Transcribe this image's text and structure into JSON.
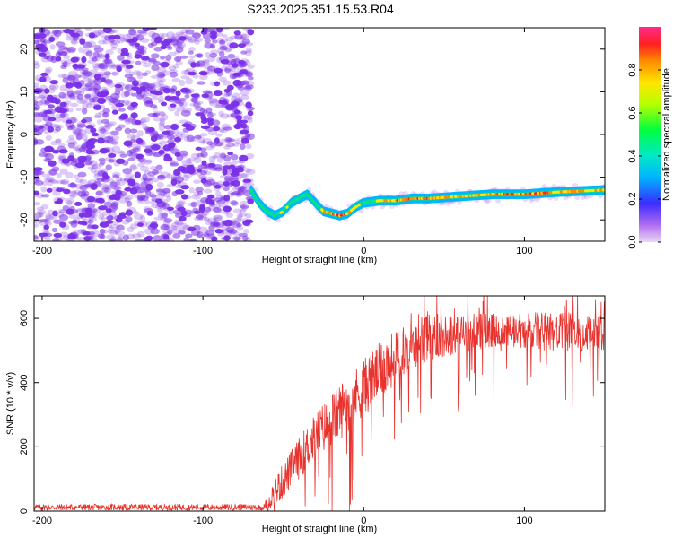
{
  "figure": {
    "title": "S233.2025.351.15.53.R04"
  },
  "chart_data": [
    {
      "type": "heatmap",
      "title": "S233.2025.351.15.53.R04",
      "xlabel": "Height of straight line (km)",
      "ylabel": "Frequency (Hz)",
      "xlim": [
        -205,
        150
      ],
      "ylim": [
        -25,
        25
      ],
      "x_ticks": [
        -200,
        -100,
        0,
        100
      ],
      "x_tick_labels": [
        "-200",
        "-100",
        "0",
        "100"
      ],
      "y_ticks": [
        -20,
        -10,
        0,
        10,
        20
      ],
      "y_tick_labels": [
        "-20",
        "-10",
        "0",
        "10",
        "20"
      ],
      "noise_region_x": [
        -205,
        -70
      ],
      "signal_ridge": {
        "x": [
          -70,
          -65,
          -60,
          -55,
          -50,
          -45,
          -40,
          -35,
          -30,
          -25,
          -20,
          -15,
          -10,
          -5,
          0,
          10,
          20,
          30,
          40,
          60,
          80,
          100,
          120,
          150
        ],
        "freq": [
          -13,
          -16,
          -18,
          -19,
          -18,
          -16,
          -15,
          -14,
          -16,
          -18,
          -18.5,
          -19,
          -18.5,
          -17,
          -16,
          -15.5,
          -15.5,
          -15,
          -15,
          -14.5,
          -14,
          -14,
          -13.5,
          -13
        ],
        "amplitude": [
          0.3,
          0.4,
          0.6,
          0.7,
          0.8,
          0.7,
          0.6,
          0.5,
          0.6,
          0.8,
          0.9,
          0.95,
          0.9,
          0.8,
          0.7,
          0.8,
          0.9,
          0.95,
          0.9,
          0.85,
          0.9,
          0.95,
          0.9,
          0.85
        ]
      },
      "colorbar": {
        "label": "Normalized spectral amplitude",
        "range": [
          0,
          1
        ],
        "ticks": [
          0.0,
          0.2,
          0.4,
          0.6,
          0.8
        ],
        "tick_labels": [
          "0.0",
          "0.2",
          "0.4",
          "0.6",
          "0.8"
        ]
      }
    },
    {
      "type": "line",
      "xlabel": "Height of straight line (km)",
      "ylabel": "SNR (10 * v/v)",
      "xlim": [
        -205,
        150
      ],
      "ylim": [
        0,
        670
      ],
      "x_ticks": [
        -200,
        -100,
        0,
        100
      ],
      "x_tick_labels": [
        "-200",
        "-100",
        "0",
        "100"
      ],
      "y_ticks": [
        0,
        200,
        400,
        600
      ],
      "y_tick_labels": [
        "0",
        "200",
        "400",
        "600"
      ],
      "series": [
        {
          "name": "SNR",
          "color": "#e8322d",
          "envelope_x": [
            -205,
            -100,
            -62,
            -55,
            -45,
            -35,
            -25,
            -15,
            -5,
            5,
            15,
            25,
            35,
            50,
            70,
            90,
            110,
            130,
            150
          ],
          "envelope_mean": [
            12,
            12,
            12,
            60,
            130,
            200,
            260,
            310,
            360,
            410,
            460,
            500,
            530,
            550,
            560,
            555,
            560,
            555,
            560
          ],
          "envelope_spread": [
            10,
            10,
            10,
            50,
            60,
            70,
            80,
            90,
            90,
            90,
            90,
            80,
            80,
            70,
            60,
            60,
            60,
            60,
            60
          ]
        }
      ]
    }
  ],
  "colors": {
    "noise": "#7a2fe8",
    "snr_line": "#e8322d"
  }
}
